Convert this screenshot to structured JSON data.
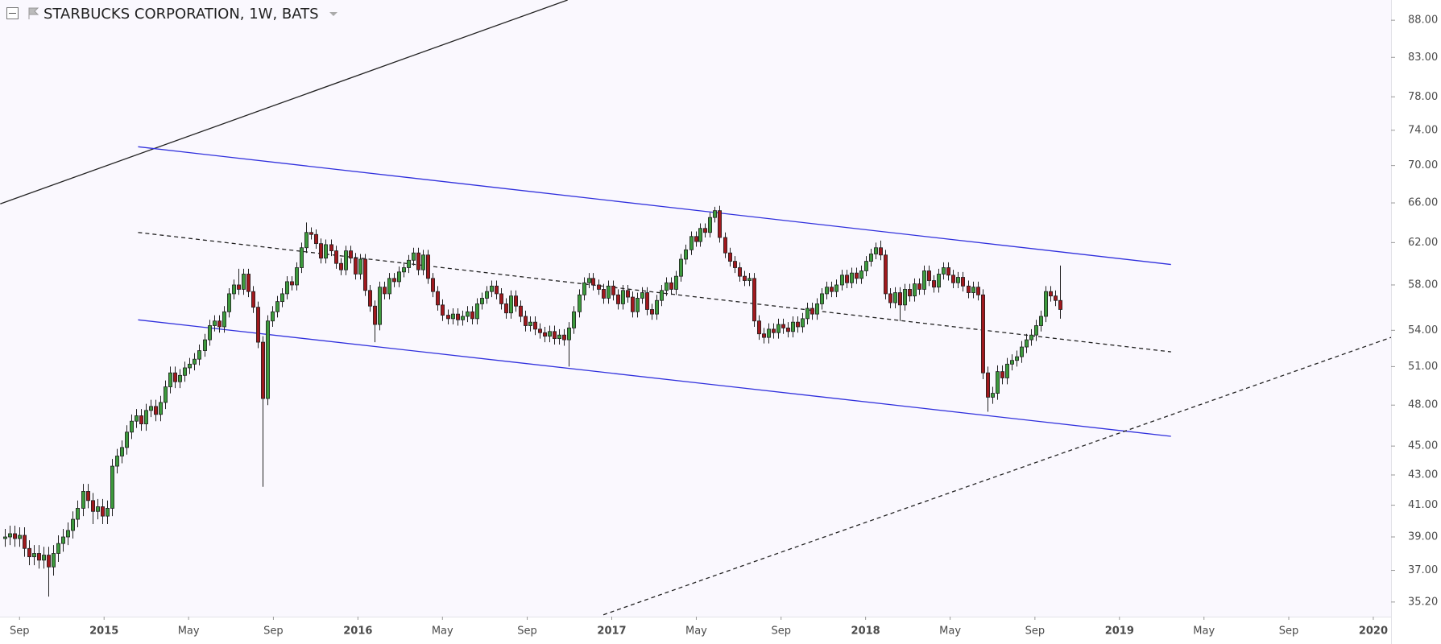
{
  "chart_data": {
    "type": "candlestick",
    "title": "STARBUCKS CORPORATION, 1W, BATS",
    "log_scale": true,
    "up_color": "#3d9a3d",
    "down_color": "#a0191e",
    "xlim": [
      2014.59,
      2020.07
    ],
    "xticks": [
      {
        "value": 2014.667,
        "label": "Sep"
      },
      2015,
      {
        "value": 2015.333,
        "label": "May"
      },
      {
        "value": 2015.667,
        "label": "Sep"
      },
      2016,
      {
        "value": 2016.333,
        "label": "May"
      },
      {
        "value": 2016.667,
        "label": "Sep"
      },
      2017,
      {
        "value": 2017.333,
        "label": "May"
      },
      {
        "value": 2017.667,
        "label": "Sep"
      },
      2018,
      {
        "value": 2018.333,
        "label": "May"
      },
      {
        "value": 2018.667,
        "label": "Sep"
      },
      2019,
      {
        "value": 2019.333,
        "label": "May"
      },
      {
        "value": 2019.667,
        "label": "Sep"
      },
      2020
    ],
    "ylim": [
      34.4,
      90.85
    ],
    "yticks": [
      {
        "value": 35.2,
        "label": "35.20"
      },
      {
        "value": 37,
        "label": "37.00"
      },
      {
        "value": 39,
        "label": "39.00"
      },
      {
        "value": 41,
        "label": "41.00"
      },
      {
        "value": 43,
        "label": "43.00"
      },
      {
        "value": 45,
        "label": "45.00"
      },
      {
        "value": 48,
        "label": "48.00"
      },
      {
        "value": 51,
        "label": "51.00"
      },
      {
        "value": 54,
        "label": "54.00"
      },
      {
        "value": 58,
        "label": "58.00"
      },
      {
        "value": 62,
        "label": "62.00"
      },
      {
        "value": 66,
        "label": "66.00"
      },
      {
        "value": 70,
        "label": "70.00"
      },
      {
        "value": 74,
        "label": "74.00"
      },
      {
        "value": 78,
        "label": "78.00"
      },
      {
        "value": 83,
        "label": "83.00"
      },
      {
        "value": 88,
        "label": "88.00"
      }
    ],
    "x": [
      2014.609,
      2014.628,
      2014.647,
      2014.667,
      2014.686,
      2014.705,
      2014.724,
      2014.743,
      2014.762,
      2014.781,
      2014.801,
      2014.82,
      2014.839,
      2014.858,
      2014.877,
      2014.896,
      2014.916,
      2014.935,
      2014.954,
      2014.973,
      2014.992,
      2015.011,
      2015.03,
      2015.05,
      2015.069,
      2015.088,
      2015.107,
      2015.126,
      2015.146,
      2015.165,
      2015.184,
      2015.203,
      2015.222,
      2015.241,
      2015.26,
      2015.28,
      2015.299,
      2015.318,
      2015.337,
      2015.356,
      2015.375,
      2015.395,
      2015.414,
      2015.433,
      2015.452,
      2015.471,
      2015.49,
      2015.509,
      2015.529,
      2015.548,
      2015.567,
      2015.586,
      2015.605,
      2015.624,
      2015.644,
      2015.663,
      2015.682,
      2015.701,
      2015.72,
      2015.739,
      2015.759,
      2015.778,
      2015.797,
      2015.816,
      2015.835,
      2015.854,
      2015.873,
      2015.893,
      2015.912,
      2015.931,
      2015.95,
      2015.969,
      2015.989,
      2016.008,
      2016.027,
      2016.046,
      2016.065,
      2016.084,
      2016.104,
      2016.123,
      2016.142,
      2016.161,
      2016.18,
      2016.199,
      2016.218,
      2016.237,
      2016.257,
      2016.276,
      2016.295,
      2016.314,
      2016.333,
      2016.353,
      2016.372,
      2016.391,
      2016.41,
      2016.429,
      2016.448,
      2016.467,
      2016.487,
      2016.506,
      2016.525,
      2016.544,
      2016.563,
      2016.582,
      2016.602,
      2016.621,
      2016.64,
      2016.659,
      2016.678,
      2016.697,
      2016.717,
      2016.736,
      2016.755,
      2016.774,
      2016.793,
      2016.812,
      2016.831,
      2016.85,
      2016.87,
      2016.889,
      2016.908,
      2016.927,
      2016.947,
      2016.966,
      2016.985,
      2017.004,
      2017.023,
      2017.042,
      2017.062,
      2017.081,
      2017.1,
      2017.119,
      2017.138,
      2017.157,
      2017.176,
      2017.196,
      2017.215,
      2017.234,
      2017.253,
      2017.272,
      2017.291,
      2017.311,
      2017.33,
      2017.349,
      2017.368,
      2017.387,
      2017.406,
      2017.425,
      2017.445,
      2017.464,
      2017.483,
      2017.502,
      2017.521,
      2017.541,
      2017.56,
      2017.579,
      2017.598,
      2017.617,
      2017.636,
      2017.655,
      2017.675,
      2017.694,
      2017.713,
      2017.732,
      2017.751,
      2017.77,
      2017.789,
      2017.809,
      2017.828,
      2017.847,
      2017.866,
      2017.885,
      2017.905,
      2017.924,
      2017.943,
      2017.962,
      2017.981,
      2018.0,
      2018.019,
      2018.039,
      2018.058,
      2018.077,
      2018.096,
      2018.115,
      2018.134,
      2018.154,
      2018.173,
      2018.192,
      2018.211,
      2018.23,
      2018.249,
      2018.269,
      2018.288,
      2018.307,
      2018.326,
      2018.345,
      2018.364,
      2018.383,
      2018.403,
      2018.422,
      2018.441,
      2018.46,
      2018.479,
      2018.498,
      2018.518,
      2018.537,
      2018.556,
      2018.575,
      2018.594,
      2018.613,
      2018.633,
      2018.652,
      2018.671,
      2018.69,
      2018.709,
      2018.728,
      2018.747,
      2018.767
    ],
    "open": [
      38.9,
      39.0,
      39.2,
      38.9,
      39.1,
      38.3,
      37.8,
      38.0,
      37.6,
      37.9,
      37.2,
      38.0,
      38.6,
      39.0,
      39.4,
      40.1,
      40.8,
      41.9,
      41.3,
      40.6,
      40.9,
      40.3,
      40.8,
      43.6,
      44.3,
      44.9,
      46.0,
      46.8,
      47.2,
      46.6,
      47.6,
      47.9,
      47.3,
      48.2,
      49.4,
      50.5,
      49.8,
      50.3,
      50.9,
      51.2,
      51.6,
      52.3,
      53.2,
      54.4,
      54.8,
      54.3,
      55.6,
      57.2,
      58.0,
      57.6,
      59.0,
      57.4,
      56.0,
      53.0,
      48.5,
      54.8,
      55.6,
      56.5,
      57.2,
      58.3,
      58.0,
      59.6,
      61.5,
      63.0,
      62.8,
      61.9,
      60.5,
      61.8,
      61.2,
      60.0,
      59.4,
      61.2,
      60.5,
      59.0,
      60.4,
      57.5,
      56.1,
      54.5,
      57.8,
      57.2,
      58.6,
      58.3,
      59.2,
      59.6,
      60.3,
      61.0,
      59.4,
      60.8,
      58.6,
      57.4,
      56.2,
      55.3,
      55.0,
      55.4,
      54.9,
      55.2,
      55.6,
      55.0,
      56.3,
      56.8,
      57.4,
      57.9,
      57.2,
      56.3,
      55.5,
      57.0,
      56.1,
      55.2,
      54.4,
      54.7,
      54.1,
      53.8,
      53.5,
      53.9,
      53.3,
      53.6,
      53.2,
      54.2,
      55.6,
      57.1,
      58.2,
      58.6,
      58.0,
      57.6,
      56.8,
      57.9,
      57.1,
      56.3,
      57.5,
      56.9,
      55.6,
      56.8,
      57.3,
      55.8,
      55.4,
      56.6,
      57.5,
      58.2,
      57.6,
      58.8,
      60.4,
      61.3,
      62.6,
      62.1,
      63.4,
      63.0,
      64.5,
      65.2,
      62.5,
      61.0,
      60.2,
      59.6,
      58.8,
      58.4,
      58.6,
      54.8,
      53.7,
      53.4,
      54.1,
      53.8,
      54.5,
      54.2,
      53.9,
      54.7,
      54.3,
      55.0,
      55.9,
      55.4,
      56.3,
      57.2,
      57.8,
      57.4,
      58.0,
      58.9,
      58.2,
      59.1,
      58.6,
      59.3,
      60.2,
      60.9,
      61.5,
      60.8,
      57.2,
      56.4,
      57.3,
      56.2,
      57.6,
      57.0,
      58.1,
      57.6,
      59.3,
      58.4,
      57.8,
      59.0,
      59.6,
      58.9,
      58.2,
      58.7,
      57.9,
      57.3,
      57.8,
      57.1,
      50.5,
      48.6,
      48.9,
      50.6,
      50.1,
      51.2,
      51.5,
      51.8,
      52.6,
      53.2,
      53.6,
      54.4,
      55.2,
      57.4,
      57.0,
      56.6
    ],
    "high": [
      39.5,
      39.7,
      39.7,
      39.6,
      39.6,
      38.8,
      38.5,
      38.5,
      38.4,
      38.4,
      38.5,
      39.1,
      39.5,
      39.9,
      40.6,
      41.3,
      42.4,
      42.4,
      41.8,
      41.4,
      41.4,
      41.3,
      44.1,
      44.8,
      45.4,
      46.5,
      47.3,
      47.7,
      47.7,
      48.1,
      48.4,
      48.4,
      48.7,
      49.9,
      51.0,
      51.0,
      50.8,
      51.4,
      51.7,
      52.1,
      52.8,
      53.7,
      54.9,
      55.3,
      55.3,
      56.1,
      57.7,
      58.5,
      59.5,
      59.5,
      59.5,
      57.9,
      56.5,
      53.5,
      55.3,
      56.1,
      57.0,
      57.7,
      58.8,
      58.8,
      60.1,
      62.0,
      64.0,
      63.5,
      63.3,
      62.4,
      62.3,
      62.3,
      61.7,
      60.5,
      61.7,
      61.7,
      61.0,
      60.9,
      60.9,
      58.0,
      56.6,
      58.3,
      58.3,
      59.1,
      59.1,
      59.7,
      60.1,
      60.8,
      61.5,
      61.5,
      61.3,
      61.3,
      59.1,
      57.9,
      56.7,
      55.8,
      55.9,
      55.9,
      55.7,
      56.1,
      56.1,
      56.8,
      57.3,
      57.9,
      58.4,
      58.4,
      57.7,
      56.8,
      57.5,
      57.5,
      56.6,
      55.7,
      55.2,
      55.2,
      54.6,
      54.3,
      54.4,
      54.4,
      54.1,
      54.1,
      54.7,
      56.1,
      57.6,
      58.7,
      59.1,
      59.1,
      58.5,
      58.1,
      58.4,
      58.4,
      57.6,
      58.0,
      58.0,
      57.4,
      57.3,
      57.8,
      57.8,
      56.3,
      57.1,
      58.0,
      58.7,
      58.7,
      59.3,
      60.9,
      61.8,
      63.1,
      63.1,
      63.9,
      63.9,
      65.0,
      65.6,
      65.7,
      63.0,
      61.5,
      60.7,
      60.1,
      59.3,
      59.1,
      59.1,
      55.3,
      54.2,
      54.6,
      54.6,
      55.0,
      55.0,
      54.7,
      55.2,
      55.2,
      55.5,
      56.4,
      56.4,
      56.8,
      57.7,
      58.3,
      58.3,
      58.5,
      59.4,
      59.4,
      59.6,
      59.6,
      59.8,
      60.7,
      61.4,
      62.0,
      62.2,
      61.3,
      57.7,
      57.8,
      57.8,
      58.1,
      58.1,
      58.6,
      58.6,
      59.8,
      59.8,
      58.9,
      59.5,
      60.1,
      60.1,
      59.4,
      59.2,
      59.2,
      58.4,
      58.3,
      58.3,
      57.6,
      51.0,
      49.4,
      51.1,
      51.1,
      51.7,
      52.0,
      52.3,
      53.1,
      53.7,
      54.1,
      54.9,
      55.7,
      57.9,
      57.9,
      57.5,
      59.8
    ],
    "low": [
      38.4,
      38.5,
      38.4,
      38.4,
      37.8,
      37.3,
      37.3,
      37.1,
      37.1,
      35.5,
      36.7,
      37.5,
      38.1,
      38.5,
      38.9,
      39.6,
      40.3,
      40.8,
      39.8,
      40.1,
      39.8,
      39.8,
      40.3,
      43.1,
      43.8,
      44.4,
      45.5,
      46.3,
      46.1,
      46.1,
      47.1,
      46.8,
      46.8,
      47.7,
      48.9,
      49.3,
      49.3,
      49.8,
      50.4,
      50.7,
      51.1,
      51.8,
      52.7,
      53.9,
      53.8,
      53.8,
      55.1,
      56.7,
      57.1,
      57.1,
      56.9,
      55.5,
      52.5,
      42.2,
      48.0,
      54.3,
      55.1,
      56.0,
      56.7,
      57.5,
      57.5,
      59.1,
      61.0,
      62.3,
      61.4,
      60.0,
      60.0,
      60.7,
      59.5,
      58.9,
      58.9,
      60.0,
      58.5,
      58.5,
      57.0,
      55.6,
      53.0,
      54.0,
      56.7,
      56.7,
      57.8,
      57.8,
      58.7,
      59.1,
      59.8,
      58.9,
      58.9,
      58.1,
      56.9,
      55.7,
      54.8,
      54.5,
      54.5,
      54.4,
      54.4,
      54.7,
      54.5,
      54.5,
      55.8,
      56.3,
      56.9,
      56.7,
      55.8,
      55.0,
      55.0,
      55.6,
      54.7,
      53.9,
      53.9,
      53.6,
      53.3,
      53.0,
      53.0,
      52.8,
      52.8,
      52.7,
      51.0,
      53.7,
      55.1,
      56.6,
      57.7,
      57.5,
      57.1,
      56.3,
      56.3,
      56.6,
      55.8,
      55.8,
      56.4,
      55.1,
      55.1,
      56.3,
      55.3,
      54.9,
      54.9,
      56.1,
      57.0,
      57.1,
      57.1,
      58.3,
      59.9,
      60.8,
      61.6,
      61.6,
      62.5,
      62.5,
      64.0,
      62.0,
      60.5,
      59.7,
      59.1,
      58.3,
      57.9,
      57.9,
      54.3,
      53.2,
      52.9,
      52.9,
      53.3,
      53.3,
      53.7,
      53.4,
      53.4,
      53.8,
      53.8,
      54.5,
      54.9,
      54.9,
      55.8,
      56.7,
      56.9,
      56.9,
      57.5,
      57.7,
      57.7,
      58.1,
      58.1,
      58.8,
      59.7,
      60.4,
      60.3,
      56.7,
      55.9,
      55.9,
      54.8,
      55.7,
      56.5,
      56.5,
      57.1,
      57.1,
      57.9,
      57.3,
      57.3,
      58.5,
      58.4,
      57.7,
      57.7,
      57.4,
      56.8,
      56.8,
      56.6,
      50.0,
      47.5,
      48.1,
      48.4,
      49.6,
      49.6,
      50.7,
      51.0,
      51.3,
      52.1,
      52.7,
      53.1,
      53.9,
      54.7,
      56.5,
      56.1,
      55.0
    ],
    "close": [
      39.0,
      39.2,
      38.9,
      39.1,
      38.3,
      37.8,
      38.0,
      37.6,
      37.9,
      37.2,
      38.0,
      38.6,
      39.0,
      39.4,
      40.1,
      40.8,
      41.9,
      41.3,
      40.6,
      40.9,
      40.3,
      40.8,
      43.6,
      44.3,
      44.9,
      46.0,
      46.8,
      47.2,
      46.6,
      47.6,
      47.9,
      47.3,
      48.2,
      49.4,
      50.5,
      49.8,
      50.3,
      50.9,
      51.2,
      51.6,
      52.3,
      53.2,
      54.4,
      54.8,
      54.3,
      55.6,
      57.2,
      58.0,
      57.6,
      59.0,
      57.4,
      56.0,
      53.0,
      48.5,
      54.8,
      55.6,
      56.5,
      57.2,
      58.3,
      58.0,
      59.6,
      61.5,
      63.0,
      62.8,
      61.9,
      60.5,
      61.8,
      61.2,
      60.0,
      59.4,
      61.2,
      60.5,
      59.0,
      60.4,
      57.5,
      56.1,
      54.5,
      57.8,
      57.2,
      58.6,
      58.3,
      59.2,
      59.6,
      60.3,
      61.0,
      59.4,
      60.8,
      58.6,
      57.4,
      56.2,
      55.3,
      55.0,
      55.4,
      54.9,
      55.2,
      55.6,
      55.0,
      56.3,
      56.8,
      57.4,
      57.9,
      57.2,
      56.3,
      55.5,
      57.0,
      56.1,
      55.2,
      54.4,
      54.7,
      54.1,
      53.8,
      53.5,
      53.9,
      53.3,
      53.6,
      53.2,
      54.2,
      55.6,
      57.1,
      58.2,
      58.6,
      58.0,
      57.6,
      56.8,
      57.9,
      57.1,
      56.3,
      57.5,
      56.9,
      55.6,
      56.8,
      57.3,
      55.8,
      55.4,
      56.6,
      57.5,
      58.2,
      57.6,
      58.8,
      60.4,
      61.3,
      62.6,
      62.1,
      63.4,
      63.0,
      64.5,
      65.2,
      62.5,
      61.0,
      60.2,
      59.6,
      58.8,
      58.4,
      58.6,
      54.8,
      53.7,
      53.4,
      54.1,
      53.8,
      54.5,
      54.2,
      53.9,
      54.7,
      54.3,
      55.0,
      55.9,
      55.4,
      56.3,
      57.2,
      57.8,
      57.4,
      58.0,
      58.9,
      58.2,
      59.1,
      58.6,
      59.3,
      60.2,
      60.9,
      61.5,
      60.8,
      57.2,
      56.4,
      57.3,
      56.2,
      57.6,
      57.0,
      58.1,
      57.6,
      59.3,
      58.4,
      57.8,
      59.0,
      59.6,
      58.9,
      58.2,
      58.7,
      57.9,
      57.3,
      57.8,
      57.1,
      50.5,
      48.6,
      48.9,
      50.6,
      50.1,
      51.2,
      51.5,
      51.8,
      52.6,
      53.2,
      53.6,
      54.4,
      55.2,
      57.4,
      57.0,
      56.6,
      55.8
    ],
    "trend_lines": [
      {
        "x": [
          2014.591,
          2016.826
        ],
        "y": [
          65.9,
          90.85
        ],
        "color": "#222222",
        "dashed": false
      },
      {
        "x": [
          2015.134,
          2019.203
        ],
        "y": [
          72.1,
          59.9
        ],
        "color": "#3030dd",
        "dashed": false
      },
      {
        "x": [
          2015.134,
          2019.203
        ],
        "y": [
          54.9,
          45.7
        ],
        "color": "#3030dd",
        "dashed": false
      },
      {
        "x": [
          2015.134,
          2019.203
        ],
        "y": [
          63.0,
          52.2
        ],
        "color": "#222222",
        "dashed": true
      },
      {
        "x": [
          2016.967,
          2020.07
        ],
        "y": [
          34.5,
          53.4
        ],
        "color": "#222222",
        "dashed": true
      }
    ]
  }
}
